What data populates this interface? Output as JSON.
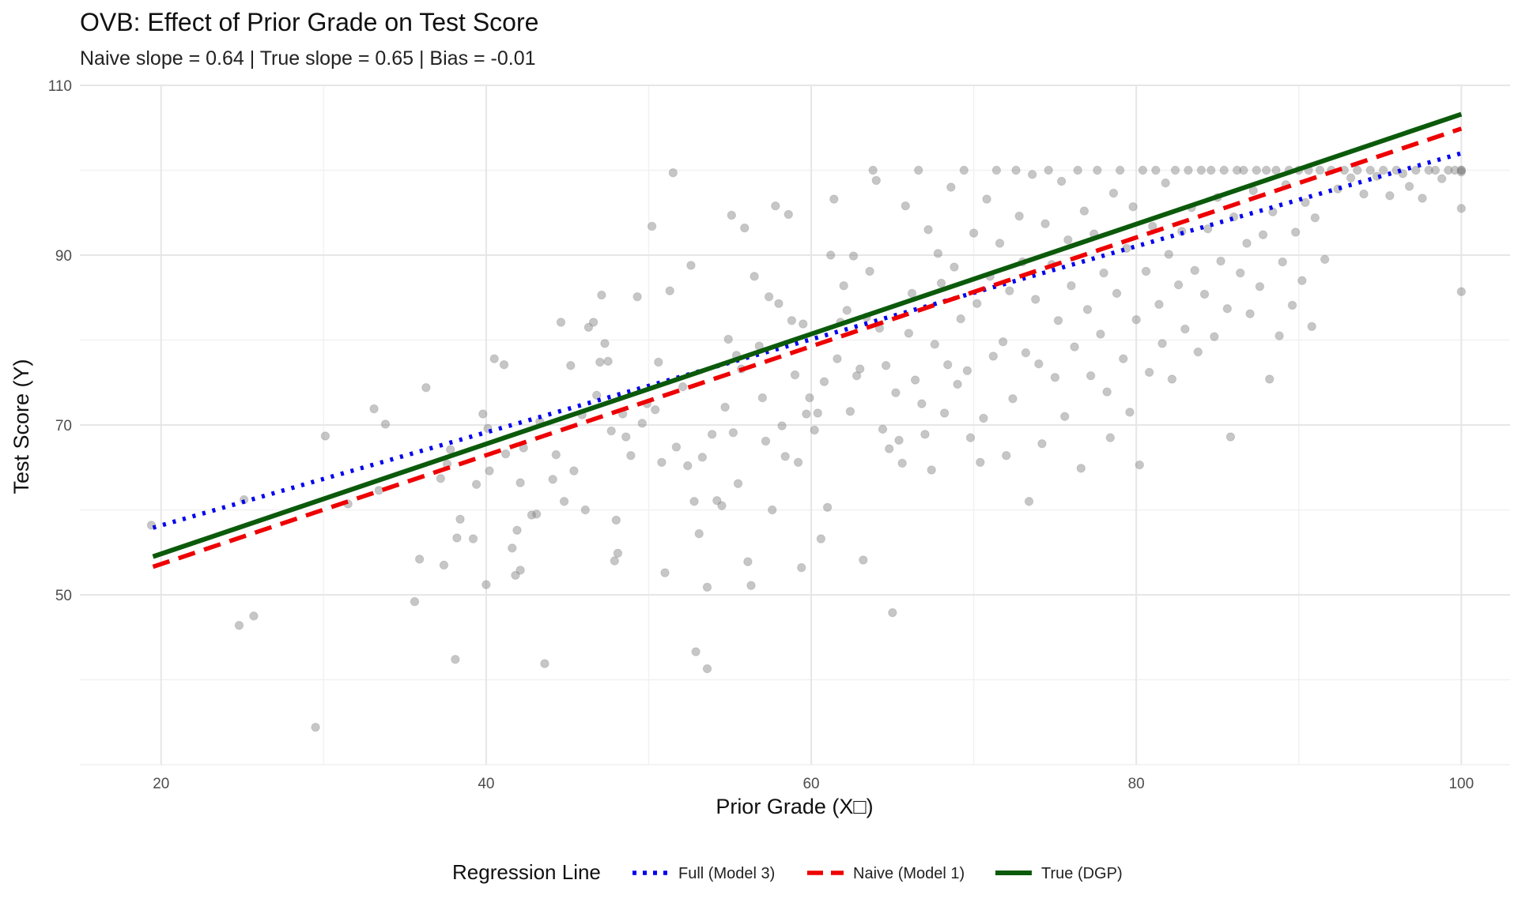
{
  "chart_data": {
    "type": "scatter",
    "title": "OVB: Effect of Prior Grade on Test Score",
    "subtitle": "Naive slope = 0.64 | True slope = 0.65 | Bias = -0.01",
    "xlabel": "Prior Grade (X□)",
    "ylabel": "Test Score (Y)",
    "xlim": [
      15,
      103
    ],
    "ylim": [
      30,
      110
    ],
    "x_ticks": [
      20,
      40,
      60,
      80,
      100
    ],
    "y_ticks": [
      50,
      70,
      90,
      110
    ],
    "grid": true,
    "legend": {
      "title": "Regression Line",
      "position": "bottom",
      "entries": [
        {
          "label": "Full (Model 3)",
          "color": "#0000ee",
          "style": "dotted"
        },
        {
          "label": "Naive (Model 1)",
          "color": "#ee0000",
          "style": "dashed"
        },
        {
          "label": "True (DGP)",
          "color": "#0b5a0b",
          "style": "solid"
        }
      ]
    },
    "series": [
      {
        "name": "Full (Model 3)",
        "kind": "line",
        "color": "#0000ee",
        "style": "dotted",
        "x": [
          19.5,
          100
        ],
        "y": [
          57.9,
          102.0
        ]
      },
      {
        "name": "Naive (Model 1)",
        "kind": "line",
        "color": "#ee0000",
        "style": "dashed",
        "x": [
          19.5,
          100
        ],
        "y": [
          53.3,
          104.9
        ]
      },
      {
        "name": "True (DGP)",
        "kind": "line",
        "color": "#0b5a0b",
        "style": "solid",
        "x": [
          19.5,
          100
        ],
        "y": [
          54.5,
          106.6
        ]
      }
    ],
    "points": {
      "color": "#808080",
      "opacity": 0.45,
      "data": [
        [
          19.4,
          58.2
        ],
        [
          24.8,
          46.4
        ],
        [
          25.1,
          61.2
        ],
        [
          25.7,
          47.5
        ],
        [
          29.5,
          34.4
        ],
        [
          30.1,
          68.7
        ],
        [
          31.5,
          60.7
        ],
        [
          33.1,
          71.9
        ],
        [
          33.4,
          62.3
        ],
        [
          33.8,
          70.1
        ],
        [
          35.6,
          49.2
        ],
        [
          35.9,
          54.2
        ],
        [
          36.3,
          74.4
        ],
        [
          37.2,
          63.7
        ],
        [
          37.4,
          53.5
        ],
        [
          37.6,
          65.4
        ],
        [
          37.8,
          67.1
        ],
        [
          38.1,
          42.4
        ],
        [
          38.2,
          56.7
        ],
        [
          38.4,
          58.9
        ],
        [
          39.2,
          56.6
        ],
        [
          39.4,
          63
        ],
        [
          39.8,
          71.3
        ],
        [
          40.0,
          51.2
        ],
        [
          40.1,
          69.6
        ],
        [
          40.2,
          64.6
        ],
        [
          40.5,
          77.8
        ],
        [
          41.1,
          77.1
        ],
        [
          41.2,
          66.6
        ],
        [
          41.6,
          55.5
        ],
        [
          41.8,
          52.3
        ],
        [
          41.9,
          57.6
        ],
        [
          42.1,
          52.9
        ],
        [
          42.1,
          63.2
        ],
        [
          42.3,
          67.3
        ],
        [
          42.8,
          59.4
        ],
        [
          43.1,
          59.5
        ],
        [
          43.3,
          70.4
        ],
        [
          43.6,
          41.9
        ],
        [
          44.1,
          63.6
        ],
        [
          44.3,
          66.5
        ],
        [
          44.6,
          82.1
        ],
        [
          44.8,
          61
        ],
        [
          45.2,
          77
        ],
        [
          45.4,
          64.6
        ],
        [
          45.9,
          71.2
        ],
        [
          46.1,
          60
        ],
        [
          46.3,
          81.5
        ],
        [
          46.6,
          82.1
        ],
        [
          46.8,
          73.5
        ],
        [
          47.1,
          85.3
        ],
        [
          47.0,
          77.4
        ],
        [
          47.3,
          79.6
        ],
        [
          47.5,
          77.5
        ],
        [
          47.7,
          69.3
        ],
        [
          47.9,
          54
        ],
        [
          48.1,
          54.9
        ],
        [
          48.0,
          58.8
        ],
        [
          48.4,
          71.3
        ],
        [
          48.6,
          68.6
        ],
        [
          48.9,
          66.4
        ],
        [
          49.3,
          85.1
        ],
        [
          49.6,
          70.2
        ],
        [
          49.9,
          72.5
        ],
        [
          50.2,
          93.4
        ],
        [
          50.4,
          71.8
        ],
        [
          50.6,
          77.4
        ],
        [
          50.8,
          65.6
        ],
        [
          51.0,
          52.6
        ],
        [
          51.3,
          85.8
        ],
        [
          51.5,
          99.7
        ],
        [
          51.7,
          67.4
        ],
        [
          52.1,
          74.5
        ],
        [
          52.4,
          65.2
        ],
        [
          52.6,
          88.8
        ],
        [
          52.8,
          61
        ],
        [
          52.9,
          43.3
        ],
        [
          53.1,
          57.2
        ],
        [
          53.3,
          66.2
        ],
        [
          53.6,
          41.3
        ],
        [
          53.6,
          50.9
        ],
        [
          53.9,
          68.9
        ],
        [
          54.2,
          61.1
        ],
        [
          54.5,
          60.5
        ],
        [
          54.7,
          72.1
        ],
        [
          54.9,
          80.1
        ],
        [
          55.1,
          94.7
        ],
        [
          55.2,
          69.1
        ],
        [
          55.4,
          78.2
        ],
        [
          55.5,
          63.1
        ],
        [
          55.7,
          76.6
        ],
        [
          55.9,
          93.2
        ],
        [
          56.1,
          53.9
        ],
        [
          56.3,
          51.1
        ],
        [
          56.5,
          87.5
        ],
        [
          56.8,
          79.3
        ],
        [
          57.0,
          73.2
        ],
        [
          57.2,
          68.1
        ],
        [
          57.4,
          85.1
        ],
        [
          57.6,
          60
        ],
        [
          57.8,
          95.8
        ],
        [
          58.0,
          84.3
        ],
        [
          58.2,
          69.9
        ],
        [
          58.4,
          66.3
        ],
        [
          58.6,
          94.8
        ],
        [
          58.8,
          82.3
        ],
        [
          59.0,
          75.9
        ],
        [
          59.2,
          65.6
        ],
        [
          59.4,
          53.2
        ],
        [
          59.5,
          81.9
        ],
        [
          59.7,
          71.3
        ],
        [
          59.9,
          73.2
        ],
        [
          60.2,
          69.4
        ],
        [
          60.4,
          71.4
        ],
        [
          60.6,
          56.6
        ],
        [
          60.8,
          75.1
        ],
        [
          61.0,
          60.3
        ],
        [
          61.2,
          90
        ],
        [
          61.4,
          96.6
        ],
        [
          61.6,
          77.8
        ],
        [
          61.8,
          82.1
        ],
        [
          62.0,
          86.4
        ],
        [
          62.2,
          83.5
        ],
        [
          62.4,
          71.6
        ],
        [
          62.6,
          89.9
        ],
        [
          62.8,
          75.8
        ],
        [
          63.0,
          76.6
        ],
        [
          63.2,
          54.1
        ],
        [
          63.4,
          82.7
        ],
        [
          63.6,
          88.1
        ],
        [
          63.8,
          100
        ],
        [
          64.0,
          98.8
        ],
        [
          64.2,
          81.4
        ],
        [
          64.4,
          69.5
        ],
        [
          64.6,
          77
        ],
        [
          64.8,
          67.2
        ],
        [
          65.0,
          47.9
        ],
        [
          65.2,
          73.8
        ],
        [
          65.4,
          68.2
        ],
        [
          65.6,
          65.5
        ],
        [
          65.8,
          95.8
        ],
        [
          66.0,
          80.8
        ],
        [
          66.2,
          85.5
        ],
        [
          66.4,
          75.3
        ],
        [
          66.6,
          100
        ],
        [
          66.8,
          72.5
        ],
        [
          67.0,
          68.9
        ],
        [
          67.2,
          93
        ],
        [
          67.4,
          64.7
        ],
        [
          67.6,
          79.5
        ],
        [
          67.8,
          90.2
        ],
        [
          68.0,
          86.7
        ],
        [
          68.2,
          71.4
        ],
        [
          68.4,
          77.1
        ],
        [
          68.6,
          98
        ],
        [
          68.8,
          88.6
        ],
        [
          69.0,
          74.8
        ],
        [
          69.2,
          82.5
        ],
        [
          69.4,
          100
        ],
        [
          69.6,
          76.4
        ],
        [
          69.8,
          68.5
        ],
        [
          70.0,
          92.6
        ],
        [
          70.2,
          84.3
        ],
        [
          70.4,
          65.6
        ],
        [
          70.6,
          70.8
        ],
        [
          70.8,
          96.6
        ],
        [
          71.0,
          87.5
        ],
        [
          71.2,
          78.1
        ],
        [
          71.4,
          100
        ],
        [
          71.6,
          91.4
        ],
        [
          71.8,
          79.8
        ],
        [
          72.0,
          66.4
        ],
        [
          72.2,
          85.8
        ],
        [
          72.4,
          73.1
        ],
        [
          72.6,
          100
        ],
        [
          72.8,
          94.6
        ],
        [
          73.0,
          89.2
        ],
        [
          73.2,
          78.5
        ],
        [
          73.4,
          61
        ],
        [
          73.6,
          99.5
        ],
        [
          73.8,
          84.8
        ],
        [
          74.0,
          77.2
        ],
        [
          74.2,
          67.8
        ],
        [
          74.4,
          93.7
        ],
        [
          74.6,
          100
        ],
        [
          74.8,
          88.9
        ],
        [
          75.0,
          75.6
        ],
        [
          75.2,
          82.3
        ],
        [
          75.4,
          98.7
        ],
        [
          75.6,
          71
        ],
        [
          75.8,
          91.8
        ],
        [
          76.0,
          86.4
        ],
        [
          76.2,
          79.2
        ],
        [
          76.4,
          100
        ],
        [
          76.6,
          64.9
        ],
        [
          76.8,
          95.2
        ],
        [
          77.0,
          83.6
        ],
        [
          77.2,
          75.8
        ],
        [
          77.4,
          92.5
        ],
        [
          77.6,
          100
        ],
        [
          77.8,
          80.7
        ],
        [
          78.0,
          87.9
        ],
        [
          78.2,
          73.9
        ],
        [
          78.4,
          68.5
        ],
        [
          78.6,
          97.3
        ],
        [
          78.8,
          85.5
        ],
        [
          79.0,
          100
        ],
        [
          79.2,
          77.8
        ],
        [
          79.4,
          90.8
        ],
        [
          79.6,
          71.5
        ],
        [
          79.8,
          95.7
        ],
        [
          80.0,
          82.4
        ],
        [
          80.2,
          65.3
        ],
        [
          80.4,
          100
        ],
        [
          80.6,
          88.1
        ],
        [
          80.8,
          76.2
        ],
        [
          81.0,
          93.4
        ],
        [
          81.2,
          100
        ],
        [
          81.4,
          84.2
        ],
        [
          81.6,
          79.6
        ],
        [
          81.8,
          98.5
        ],
        [
          82.0,
          90.1
        ],
        [
          82.2,
          75.4
        ],
        [
          82.4,
          100
        ],
        [
          82.6,
          86.5
        ],
        [
          82.8,
          92.8
        ],
        [
          83.0,
          81.3
        ],
        [
          83.2,
          100
        ],
        [
          83.4,
          95.6
        ],
        [
          83.6,
          88.2
        ],
        [
          83.8,
          78.6
        ],
        [
          84.0,
          100
        ],
        [
          84.2,
          85.4
        ],
        [
          84.4,
          93.1
        ],
        [
          84.6,
          100
        ],
        [
          84.8,
          80.4
        ],
        [
          85.0,
          96.8
        ],
        [
          85.2,
          89.3
        ],
        [
          85.4,
          100
        ],
        [
          85.6,
          83.7
        ],
        [
          85.8,
          68.6
        ],
        [
          86.0,
          94.5
        ],
        [
          86.2,
          100
        ],
        [
          86.4,
          87.9
        ],
        [
          86.6,
          100
        ],
        [
          86.8,
          91.4
        ],
        [
          87.0,
          83.1
        ],
        [
          87.2,
          97.6
        ],
        [
          87.4,
          100
        ],
        [
          87.6,
          86.3
        ],
        [
          87.8,
          92.4
        ],
        [
          88.0,
          100
        ],
        [
          88.2,
          75.4
        ],
        [
          88.4,
          95.1
        ],
        [
          88.6,
          100
        ],
        [
          88.8,
          80.5
        ],
        [
          89.0,
          89.2
        ],
        [
          89.2,
          98.3
        ],
        [
          89.4,
          100
        ],
        [
          89.6,
          84.1
        ],
        [
          89.8,
          92.7
        ],
        [
          90.0,
          100
        ],
        [
          90.2,
          87
        ],
        [
          90.4,
          96.2
        ],
        [
          90.6,
          100
        ],
        [
          90.8,
          81.6
        ],
        [
          91.0,
          94.4
        ],
        [
          91.3,
          100
        ],
        [
          91.6,
          89.5
        ],
        [
          92.0,
          100
        ],
        [
          92.4,
          97.8
        ],
        [
          92.8,
          100
        ],
        [
          93.2,
          99.1
        ],
        [
          93.6,
          100
        ],
        [
          94.0,
          97.2
        ],
        [
          94.4,
          100
        ],
        [
          94.8,
          99.3
        ],
        [
          95.2,
          100
        ],
        [
          95.6,
          97
        ],
        [
          96.0,
          100
        ],
        [
          96.4,
          99.6
        ],
        [
          96.8,
          98.1
        ],
        [
          97.2,
          100
        ],
        [
          97.6,
          96.7
        ],
        [
          98.0,
          100
        ],
        [
          98.4,
          100
        ],
        [
          98.8,
          99
        ],
        [
          99.2,
          100
        ],
        [
          99.6,
          100
        ],
        [
          100,
          100
        ],
        [
          100,
          95.5
        ],
        [
          100,
          85.7
        ],
        [
          100,
          100
        ],
        [
          100,
          99.8
        ]
      ]
    }
  }
}
